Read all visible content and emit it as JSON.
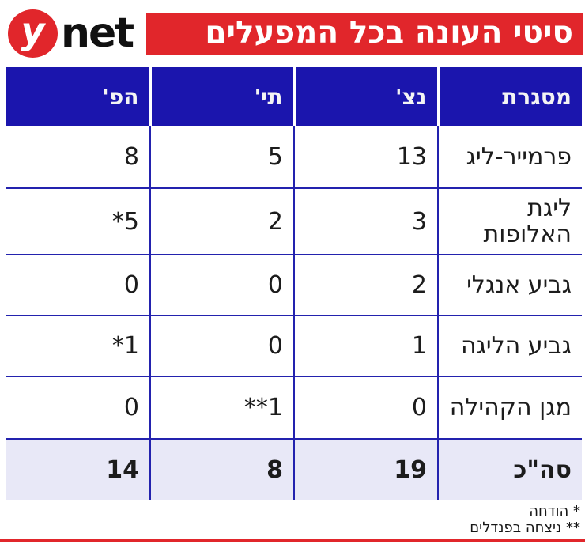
{
  "brand": {
    "y": "y",
    "net": "net"
  },
  "banner": {
    "title": "סיטי העונה בכל המפעלים"
  },
  "colors": {
    "brand_red": "#e1262b",
    "header_blue": "#1b15ad",
    "grid_blue": "#2322ae",
    "total_row_bg": "#e8e8f7"
  },
  "chart_data": {
    "type": "table",
    "title": "סיטי העונה בכל המפעלים",
    "columns": [
      "מסגרת",
      "נצ'",
      "תי'",
      "הפ'"
    ],
    "rows": [
      [
        "פרמייר-ליג",
        "13",
        "5",
        "8"
      ],
      [
        "ליגת האלופות",
        "3",
        "2",
        "5*"
      ],
      [
        "גביע אנגלי",
        "2",
        "0",
        "0"
      ],
      [
        "גביע הליגה",
        "1",
        "0",
        "1*"
      ],
      [
        "מגן הקהילה",
        "0",
        "1**",
        "0"
      ],
      [
        "סה\"כ",
        "19",
        "8",
        "14"
      ]
    ],
    "totals_row_label": "סה\"כ",
    "footnotes": [
      "* הודחה",
      "** ניצחה בפנדלים"
    ],
    "layout": "rtl-table, 4 equal columns, totals row highlighted"
  }
}
